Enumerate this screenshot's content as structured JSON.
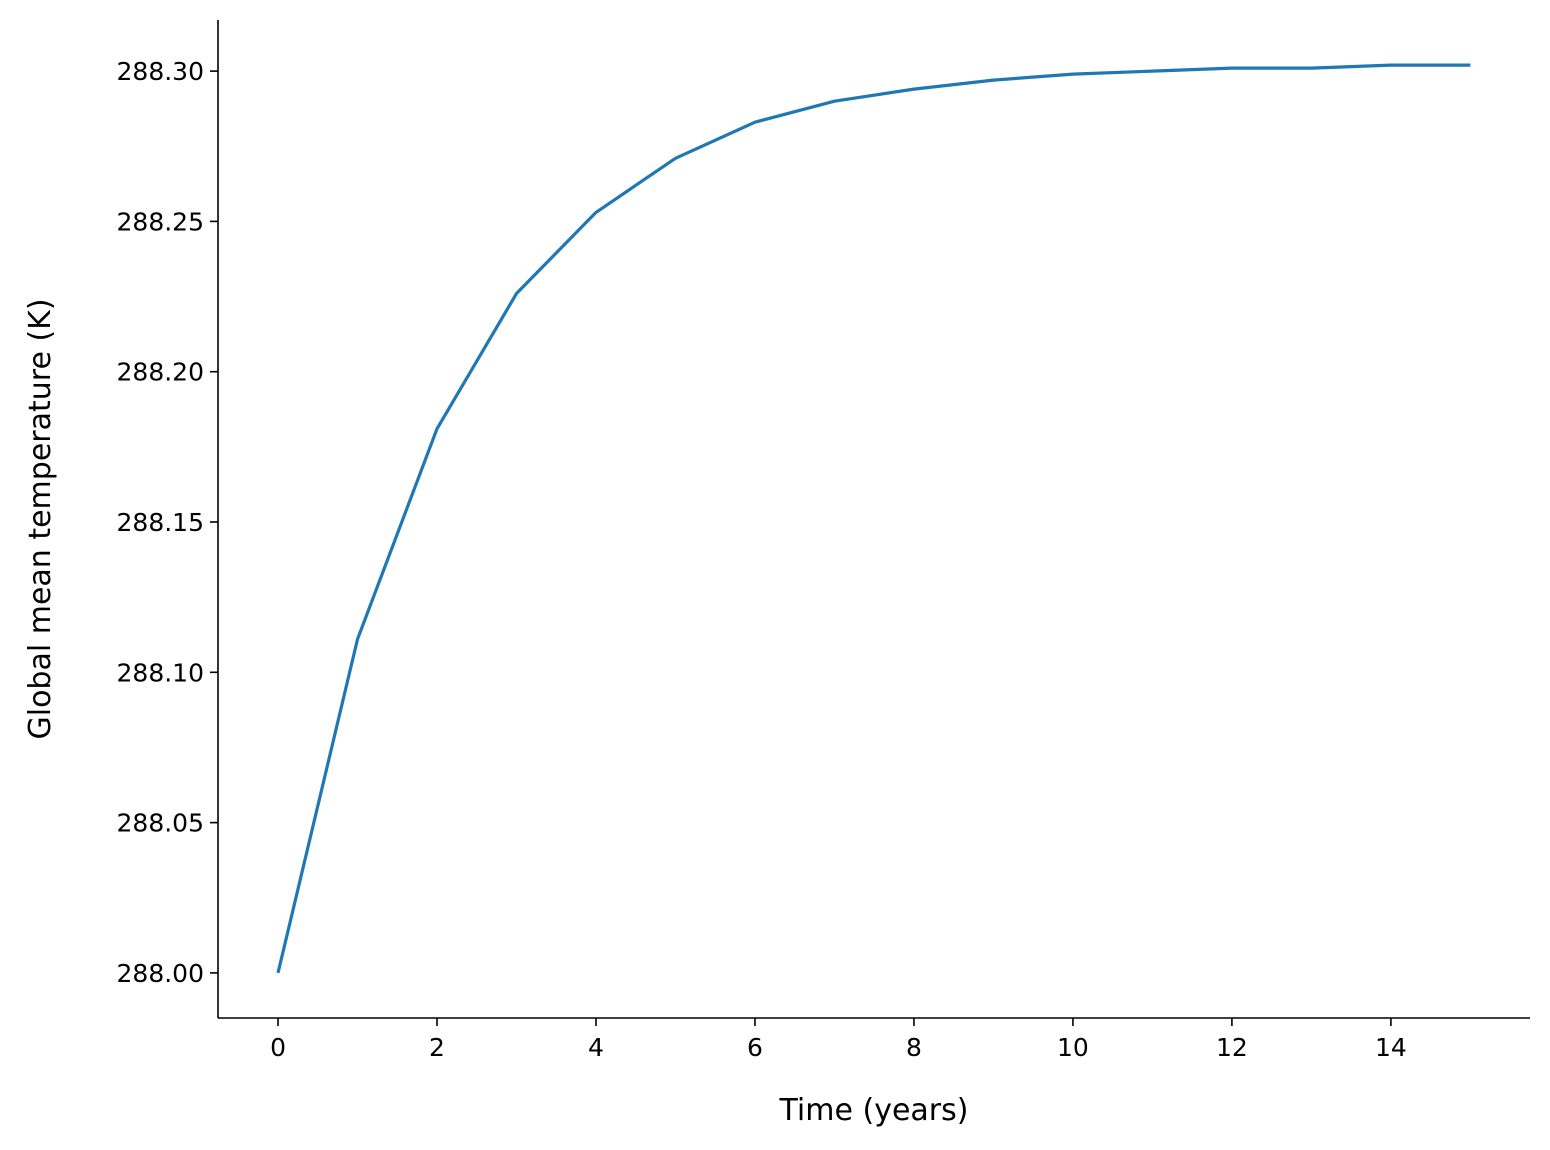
{
  "chart_data": {
    "type": "line",
    "x_label": "Time (years)",
    "y_label": "Global mean temperature (K)",
    "x": [
      0,
      1,
      2,
      3,
      4,
      5,
      6,
      7,
      8,
      9,
      10,
      11,
      12,
      13,
      14,
      15
    ],
    "values": [
      288.0,
      288.111,
      288.181,
      288.226,
      288.253,
      288.271,
      288.283,
      288.29,
      288.294,
      288.297,
      288.299,
      288.3,
      288.301,
      288.301,
      288.302,
      288.302
    ],
    "color": "#1f77b4",
    "xlim": [
      -0.755,
      15.75
    ],
    "xticks": [
      0,
      2,
      4,
      6,
      8,
      10,
      12,
      14
    ],
    "ylim": [
      287.985,
      288.317
    ],
    "yticks": [
      {
        "value": 288.0,
        "label": "288.00"
      },
      288.05,
      {
        "value": 288.1,
        "label": "288.10"
      },
      288.15,
      {
        "value": 288.2,
        "label": "288.20"
      },
      288.25,
      {
        "value": 288.3,
        "label": "288.30"
      }
    ],
    "grid": false
  }
}
